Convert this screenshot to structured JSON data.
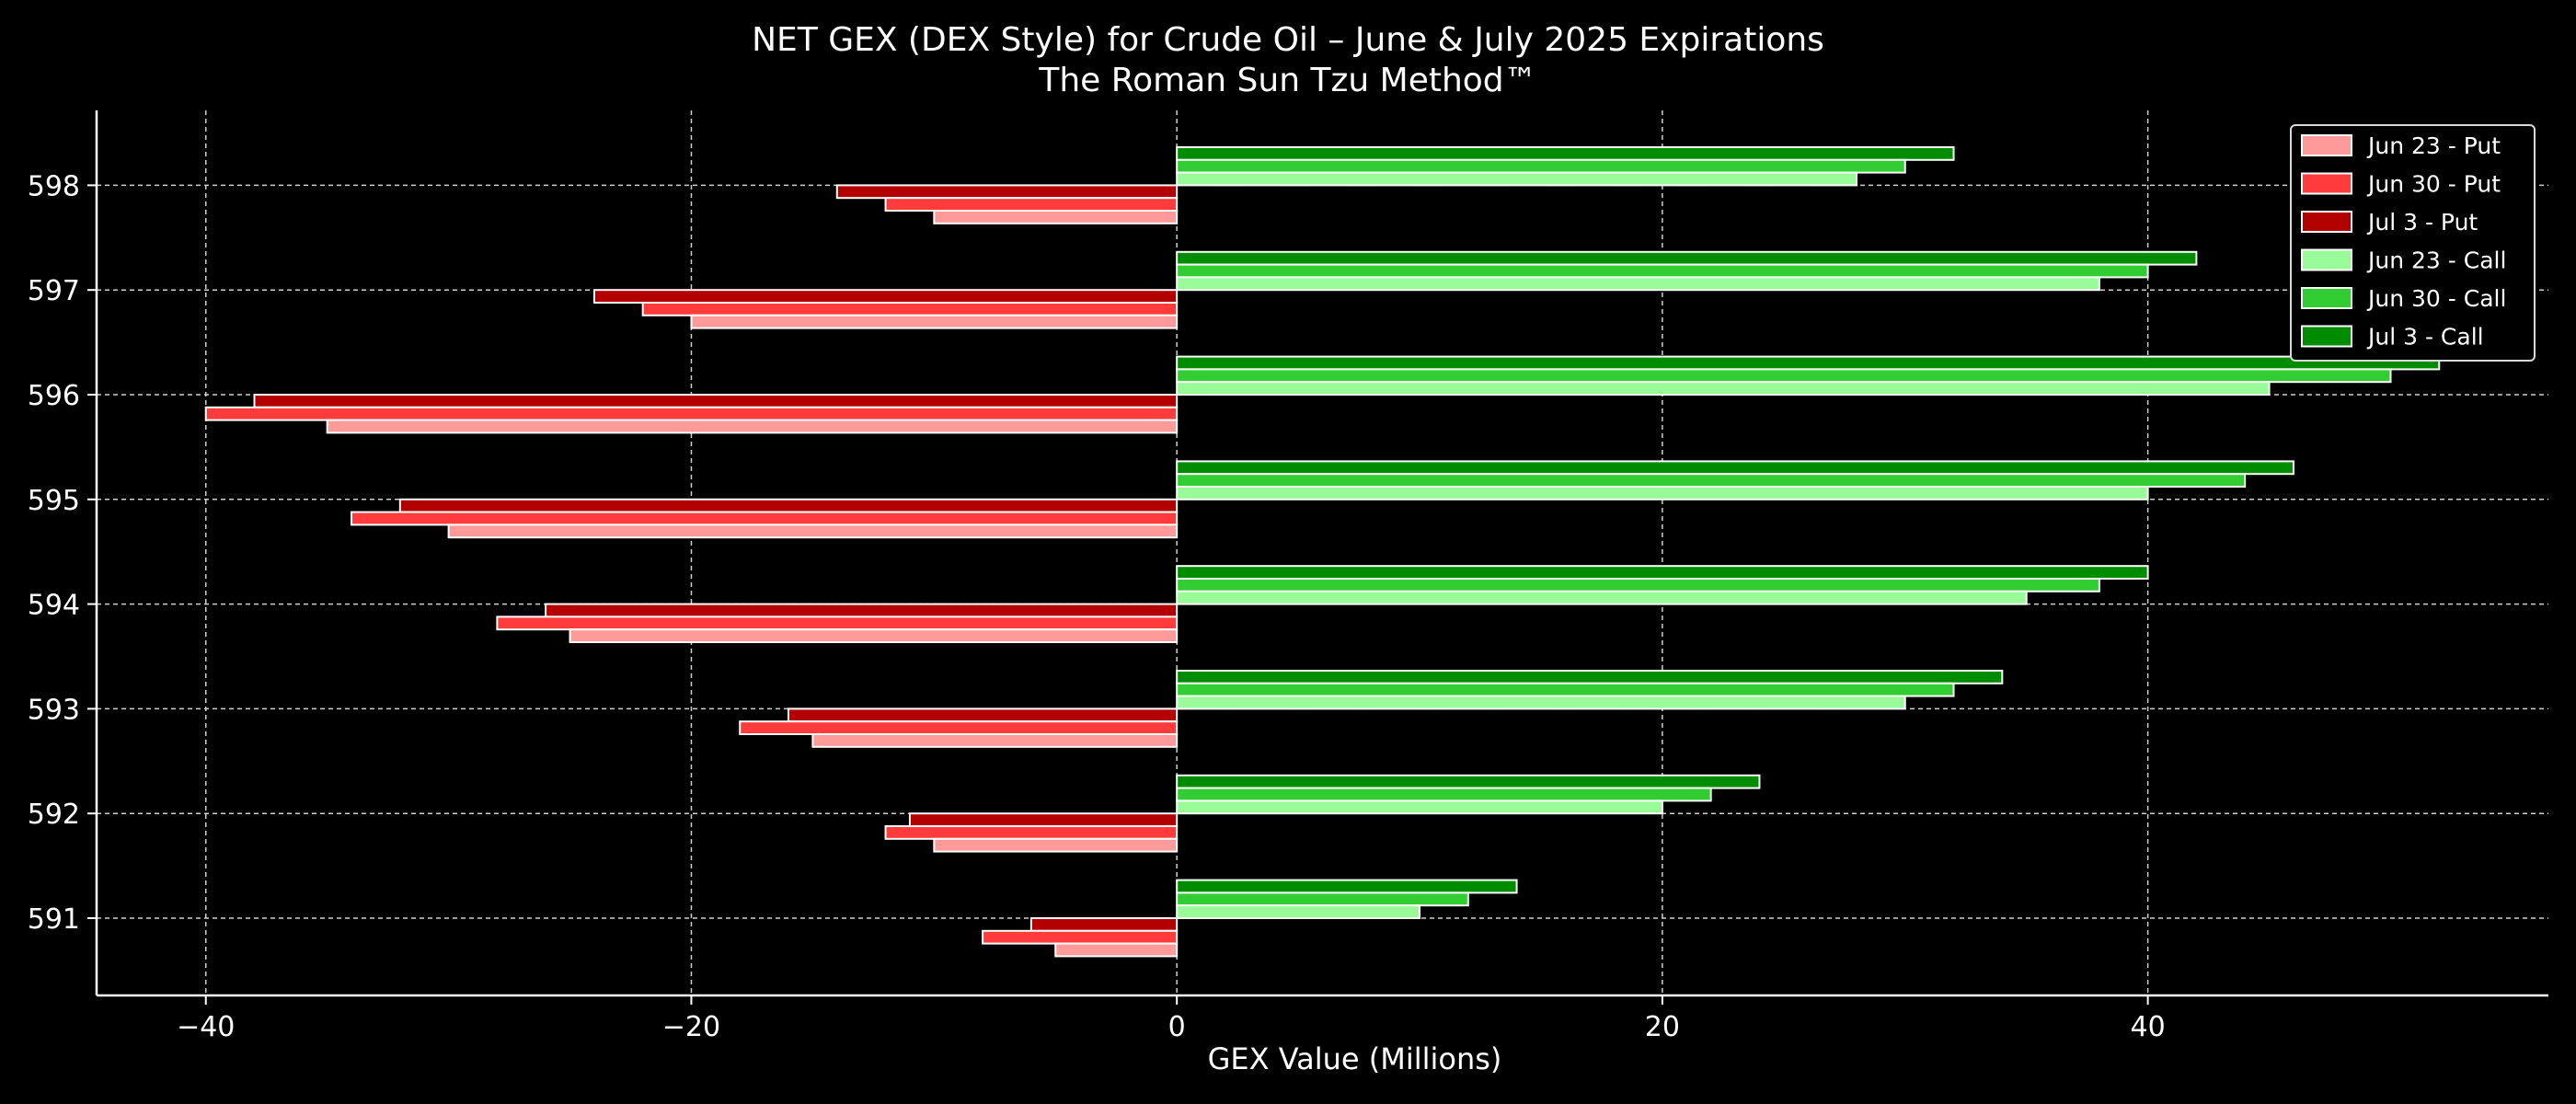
{
  "chart_data": {
    "type": "bar",
    "orientation": "horizontal",
    "title": "NET GEX (DEX Style) for Crude Oil – June & July 2025 Expirations",
    "subtitle": "The Roman Sun Tzu Method™",
    "xlabel": "GEX Value (Millions)",
    "ylabel": "",
    "xlim": [
      -44.5,
      56.5
    ],
    "xticks": [
      -40,
      -20,
      0,
      20,
      40
    ],
    "xtick_labels": [
      "−40",
      "−20",
      "0",
      "20",
      "40"
    ],
    "categories": [
      "591",
      "592",
      "593",
      "594",
      "595",
      "596",
      "597",
      "598"
    ],
    "grid": true,
    "legend_position": "top-right",
    "series": [
      {
        "name": "Jun 23 - Put",
        "kind": "put",
        "color": "#ff9a9a",
        "values": [
          -5,
          -10,
          -15,
          -25,
          -30,
          -35,
          -20,
          -10
        ]
      },
      {
        "name": "Jun 30 - Put",
        "kind": "put",
        "color": "#ff3b3b",
        "values": [
          -8,
          -12,
          -18,
          -28,
          -34,
          -40,
          -22,
          -12
        ]
      },
      {
        "name": "Jul 3 - Put",
        "kind": "put",
        "color": "#b30000",
        "values": [
          -6,
          -11,
          -16,
          -26,
          -32,
          -38,
          -24,
          -14
        ]
      },
      {
        "name": "Jun 23 - Call",
        "kind": "call",
        "color": "#98fb98",
        "values": [
          10,
          20,
          30,
          35,
          40,
          45,
          38,
          28
        ]
      },
      {
        "name": "Jun 30 - Call",
        "kind": "call",
        "color": "#32cd32",
        "values": [
          12,
          22,
          32,
          38,
          44,
          50,
          40,
          30
        ]
      },
      {
        "name": "Jul 3 - Call",
        "kind": "call",
        "color": "#008c00",
        "values": [
          14,
          24,
          34,
          40,
          46,
          52,
          42,
          32
        ]
      }
    ]
  }
}
